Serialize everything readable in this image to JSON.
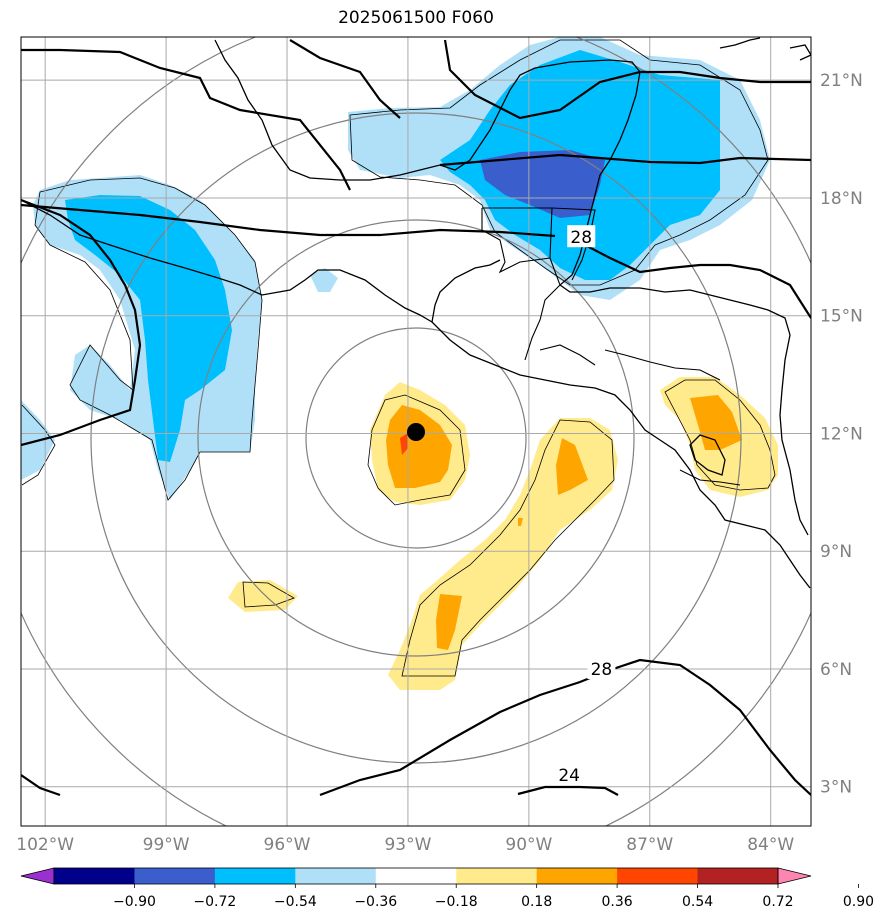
{
  "title": "2025061500 F060",
  "map": {
    "lon_range": [
      -102.6,
      -83.0
    ],
    "lat_range": [
      2.0,
      22.1
    ],
    "grid": true,
    "lon_ticks": [
      {
        "value": -102,
        "label": "102°W"
      },
      {
        "value": -99,
        "label": "99°W"
      },
      {
        "value": -96,
        "label": "96°W"
      },
      {
        "value": -93,
        "label": "93°W"
      },
      {
        "value": -90,
        "label": "90°W"
      },
      {
        "value": -87,
        "label": "87°W"
      },
      {
        "value": -84,
        "label": "84°W"
      }
    ],
    "lat_ticks": [
      {
        "value": 3,
        "label": "3°N"
      },
      {
        "value": 6,
        "label": "6°N"
      },
      {
        "value": 9,
        "label": "9°N"
      },
      {
        "value": 12,
        "label": "12°N"
      },
      {
        "value": 15,
        "label": "15°N"
      },
      {
        "value": 18,
        "label": "18°N"
      },
      {
        "value": 21,
        "label": "21°N"
      }
    ],
    "storm_center": {
      "lon": -92.6,
      "lat": 12.2
    },
    "contour_labels": [
      {
        "text": "28",
        "lon": -88.7,
        "lat": 17.0
      },
      {
        "text": "28",
        "lon": -88.2,
        "lat": 6.0
      },
      {
        "text": "24",
        "lon": -89.0,
        "lat": 3.3
      }
    ]
  },
  "colorbar": {
    "levels": [
      "−0.90",
      "−0.72",
      "−0.54",
      "−0.36",
      "−0.18",
      "0.18",
      "0.36",
      "0.54",
      "0.72",
      "0.90"
    ],
    "colors": [
      "#9b30d0",
      "#00008b",
      "#3a5fcd",
      "#00bfff",
      "#b0e0f8",
      "#ffffff",
      "#ffeb8c",
      "#ffa500",
      "#ff4500",
      "#b22222",
      "#ff85b0"
    ]
  }
}
